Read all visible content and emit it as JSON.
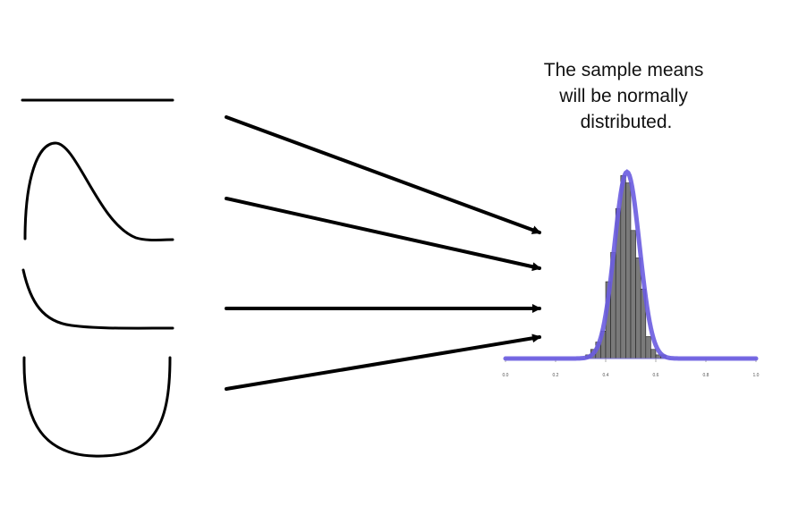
{
  "caption": {
    "lines": [
      "The sample means",
      "will be normally",
      "distributed."
    ]
  },
  "source_distributions": [
    {
      "shape": "uniform"
    },
    {
      "shape": "right-skewed"
    },
    {
      "shape": "exponential-decay"
    },
    {
      "shape": "u-shaped"
    }
  ],
  "colors": {
    "curve": "#000000",
    "arrow": "#000000",
    "normal_fit": "#6a5ce0",
    "bar_fill": "#7a7a7a",
    "axis": "#7a6fd8"
  },
  "chart_data": {
    "type": "bar",
    "description_free": true,
    "x_ticks": [
      "0.0",
      "0.2",
      "0.4",
      "0.6",
      "0.8",
      "1.0"
    ],
    "xlim": [
      0,
      1
    ],
    "bin_width": 0.02,
    "bins": [
      {
        "x": 0.32,
        "count": 2
      },
      {
        "x": 0.34,
        "count": 5
      },
      {
        "x": 0.36,
        "count": 9
      },
      {
        "x": 0.38,
        "count": 15
      },
      {
        "x": 0.4,
        "count": 42
      },
      {
        "x": 0.42,
        "count": 58
      },
      {
        "x": 0.44,
        "count": 82
      },
      {
        "x": 0.46,
        "count": 100
      },
      {
        "x": 0.48,
        "count": 96
      },
      {
        "x": 0.5,
        "count": 70
      },
      {
        "x": 0.52,
        "count": 55
      },
      {
        "x": 0.54,
        "count": 38
      },
      {
        "x": 0.56,
        "count": 12
      },
      {
        "x": 0.58,
        "count": 5
      },
      {
        "x": 0.6,
        "count": 2
      },
      {
        "x": 0.62,
        "count": 2
      }
    ],
    "ylim": [
      0,
      108
    ],
    "normal_fit": {
      "mean": 0.485,
      "sd": 0.05,
      "peak": 102
    }
  }
}
